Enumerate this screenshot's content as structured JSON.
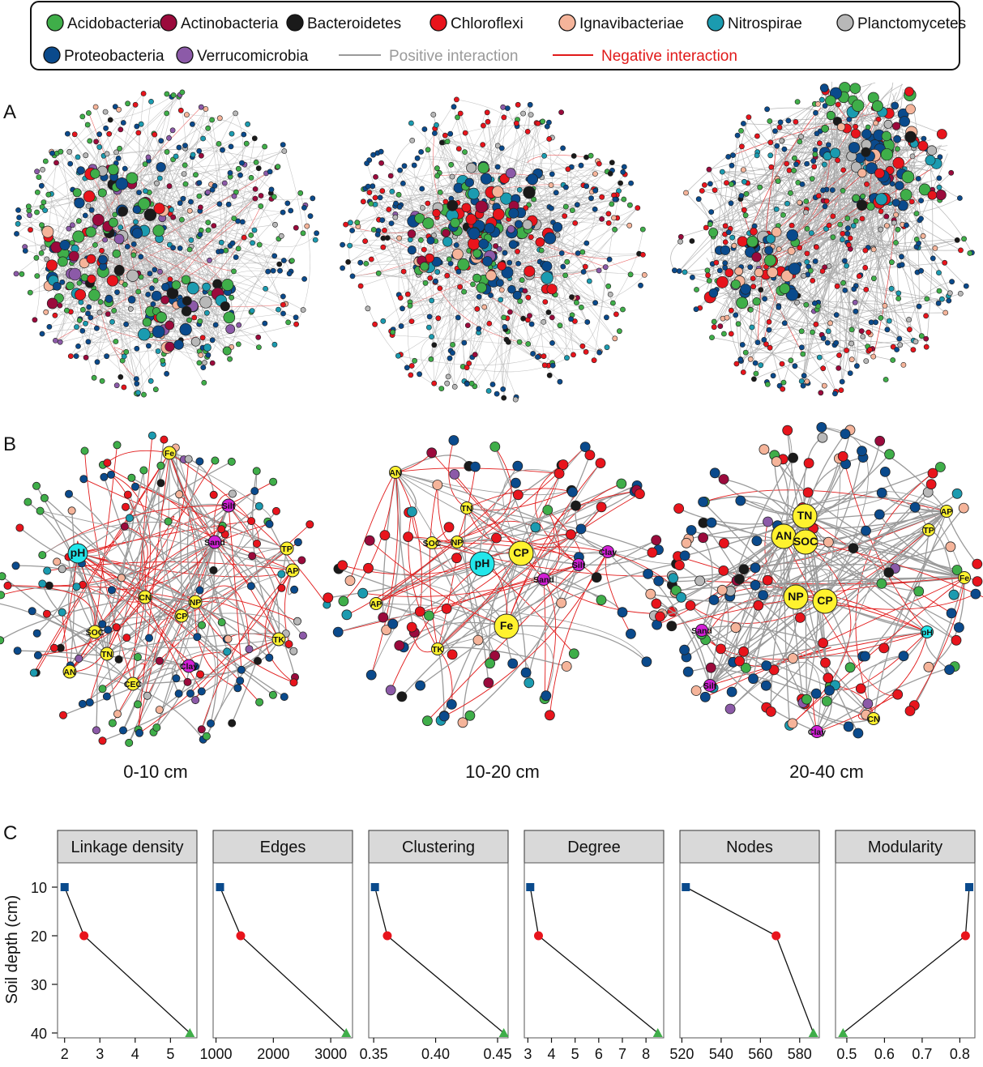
{
  "legend": {
    "phyla": [
      {
        "name": "Acidobacteria",
        "color": "#3fae49"
      },
      {
        "name": "Actinobacteria",
        "color": "#9b0a3c"
      },
      {
        "name": "Bacteroidetes",
        "color": "#1a1a1a"
      },
      {
        "name": "Chloroflexi",
        "color": "#e8141c"
      },
      {
        "name": "Ignavibacteriae",
        "color": "#f5b49a"
      },
      {
        "name": "Nitrospirae",
        "color": "#1b9bb0"
      },
      {
        "name": "Planctomycetes",
        "color": "#b8b8b8"
      },
      {
        "name": "Proteobacteria",
        "color": "#0a4a8c"
      },
      {
        "name": "Verrucomicrobia",
        "color": "#8c5aa8"
      }
    ],
    "positive_label": "Positive interaction",
    "negative_label": "Negative interaction",
    "positive_color": "#9a9a9a",
    "negative_color": "#e11a1a"
  },
  "panel_labels": {
    "a": "A",
    "b": "B",
    "c": "C"
  },
  "depths": [
    "0-10 cm",
    "10-20 cm",
    "20-40 cm"
  ],
  "env_color": "#fff22e",
  "ph_color": "#22e6ea",
  "texture_color": "#d21fd6",
  "env_nodes": [
    [
      {
        "label": "pH",
        "kind": "ph",
        "big": true
      },
      {
        "label": "Fe",
        "kind": "env"
      },
      {
        "label": "Silt",
        "kind": "texture"
      },
      {
        "label": "Sand",
        "kind": "texture"
      },
      {
        "label": "TP",
        "kind": "env"
      },
      {
        "label": "AP",
        "kind": "env"
      },
      {
        "label": "CN",
        "kind": "env"
      },
      {
        "label": "NP",
        "kind": "env"
      },
      {
        "label": "CP",
        "kind": "env"
      },
      {
        "label": "SOC",
        "kind": "env"
      },
      {
        "label": "TN",
        "kind": "env"
      },
      {
        "label": "TK",
        "kind": "env"
      },
      {
        "label": "Clay",
        "kind": "texture"
      },
      {
        "label": "AN",
        "kind": "env"
      },
      {
        "label": "CEC",
        "kind": "env"
      }
    ],
    [
      {
        "label": "AN",
        "kind": "env"
      },
      {
        "label": "TN",
        "kind": "env"
      },
      {
        "label": "SOC",
        "kind": "env"
      },
      {
        "label": "NP",
        "kind": "env"
      },
      {
        "label": "pH",
        "kind": "ph",
        "big": true
      },
      {
        "label": "CP",
        "kind": "env",
        "big": true
      },
      {
        "label": "Silt",
        "kind": "texture"
      },
      {
        "label": "Clay",
        "kind": "texture"
      },
      {
        "label": "Sand",
        "kind": "texture"
      },
      {
        "label": "AP",
        "kind": "env"
      },
      {
        "label": "Fe",
        "kind": "env",
        "big": true
      },
      {
        "label": "TK",
        "kind": "env"
      }
    ],
    [
      {
        "label": "TN",
        "kind": "env",
        "big": true
      },
      {
        "label": "AN",
        "kind": "env",
        "big": true
      },
      {
        "label": "SOC",
        "kind": "env",
        "big": true
      },
      {
        "label": "AP",
        "kind": "env"
      },
      {
        "label": "TP",
        "kind": "env"
      },
      {
        "label": "Fe",
        "kind": "env"
      },
      {
        "label": "NP",
        "kind": "env",
        "big": true
      },
      {
        "label": "CP",
        "kind": "env",
        "big": true
      },
      {
        "label": "pH",
        "kind": "ph"
      },
      {
        "label": "Sand",
        "kind": "texture"
      },
      {
        "label": "Silt",
        "kind": "texture"
      },
      {
        "label": "CN",
        "kind": "env"
      },
      {
        "label": "Clay",
        "kind": "texture"
      }
    ]
  ],
  "chart_data": {
    "type": "line",
    "ylabel": "Soil depth (cm)",
    "y_ticks": [
      10,
      20,
      30,
      40
    ],
    "ylim": [
      5,
      41
    ],
    "y_reversed": true,
    "point_depths": [
      10,
      20,
      40
    ],
    "marker_shapes": [
      "square",
      "circle",
      "triangle"
    ],
    "marker_colors": [
      "#0a4a8c",
      "#e8141c",
      "#3fae49"
    ],
    "panels": [
      {
        "title": "Linkage density",
        "x": [
          2.0,
          2.55,
          5.55
        ],
        "xlim": [
          1.8,
          5.75
        ],
        "ticks": [
          2,
          3,
          4,
          5
        ],
        "tick_labels": [
          "2",
          "3",
          "4",
          "5"
        ]
      },
      {
        "title": "Edges",
        "x": [
          1070,
          1430,
          3270
        ],
        "xlim": [
          950,
          3380
        ],
        "ticks": [
          1000,
          2000,
          3000
        ],
        "tick_labels": [
          "1000",
          "2000",
          "3000"
        ]
      },
      {
        "title": "Clustering",
        "x": [
          0.351,
          0.361,
          0.455
        ],
        "xlim": [
          0.346,
          0.4585
        ],
        "ticks": [
          0.35,
          0.4,
          0.45
        ],
        "tick_labels": [
          "0.35",
          "0.40",
          "0.45"
        ]
      },
      {
        "title": "Degree",
        "x": [
          3.1,
          3.45,
          8.5
        ],
        "xlim": [
          2.85,
          8.75
        ],
        "ticks": [
          3,
          4,
          5,
          6,
          7,
          8
        ],
        "tick_labels": [
          "3",
          "4",
          "5",
          "6",
          "7",
          "8"
        ]
      },
      {
        "title": "Nodes",
        "x": [
          522,
          568,
          587
        ],
        "xlim": [
          519,
          590
        ],
        "ticks": [
          520,
          540,
          560,
          580
        ],
        "tick_labels": [
          "520",
          "540",
          "560",
          "580"
        ]
      },
      {
        "title": "Modularity",
        "x": [
          0.825,
          0.815,
          0.49
        ],
        "xlim": [
          0.47,
          0.84
        ],
        "ticks": [
          0.5,
          0.6,
          0.7,
          0.8
        ],
        "tick_labels": [
          "0.5",
          "0.6",
          "0.7",
          "0.8"
        ]
      }
    ]
  }
}
